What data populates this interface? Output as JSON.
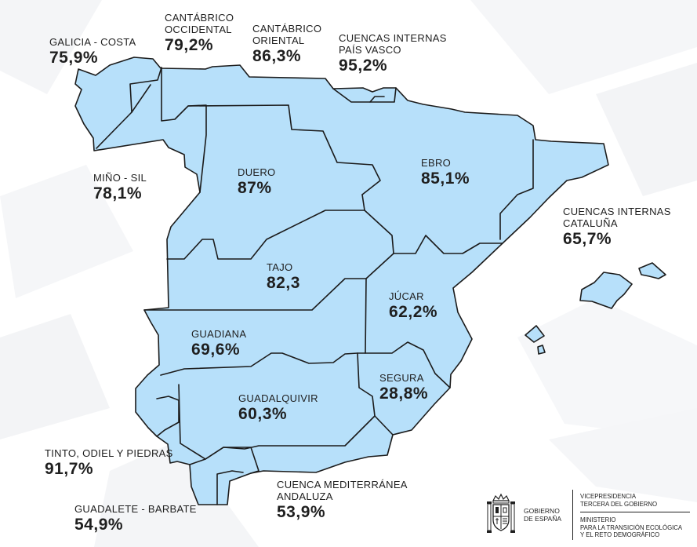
{
  "colors": {
    "basin_fill": "#b7e0fa",
    "border": "#1b1b1b",
    "text": "#1f1f1f",
    "background": "#ffffff"
  },
  "basins": {
    "galicia_costa": {
      "name": "GALICIA - COSTA",
      "value": "75,9%"
    },
    "cantabrico_occidental": {
      "name_line1": "CANTÁBRICO",
      "name_line2": "OCCIDENTAL",
      "value": "79,2%"
    },
    "cantabrico_oriental": {
      "name_line1": "CANTÁBRICO",
      "name_line2": "ORIENTAL",
      "value": "86,3%"
    },
    "cuencas_internas_pais_vasco": {
      "name_line1": "CUENCAS INTERNAS",
      "name_line2": "PAÍS VASCO",
      "value": "95,2%"
    },
    "mino_sil": {
      "name": "MIÑO - SIL",
      "value": "78,1%"
    },
    "duero": {
      "name": "DUERO",
      "value": "87%"
    },
    "ebro": {
      "name": "EBRO",
      "value": "85,1%"
    },
    "cuencas_internas_cataluna": {
      "name_line1": "CUENCAS INTERNAS",
      "name_line2": "CATALUÑA",
      "value": "65,7%"
    },
    "tajo": {
      "name": "TAJO",
      "value": "82,3"
    },
    "jucar": {
      "name": "JÚCAR",
      "value": "62,2%"
    },
    "guadiana": {
      "name": "GUADIANA",
      "value": "69,6%"
    },
    "segura": {
      "name": "SEGURA",
      "value": "28,8%"
    },
    "guadalquivir": {
      "name": "GUADALQUIVIR",
      "value": "60,3%"
    },
    "tinto_odiel_piedras": {
      "name": "TINTO, ODIEL Y PIEDRAS",
      "value": "91,7%"
    },
    "cuenca_mediterranea_andaluza": {
      "name_line1": "CUENCA MEDITERRÁNEA",
      "name_line2": "ANDALUZA",
      "value": "53,9%"
    },
    "guadalete_barbate": {
      "name": "GUADALETE - BARBATE",
      "value": "54,9%"
    }
  },
  "footer": {
    "emblem_icon": "coat-of-arms-icon",
    "gobierno_line1": "GOBIERNO",
    "gobierno_line2": "DE ESPAÑA",
    "vice_line1": "VICEPRESIDENCIA",
    "vice_line2": "TERCERA DEL GOBIERNO",
    "ministerio_line1": "MINISTERIO",
    "ministerio_line2": "PARA LA TRANSICIÓN ECOLÓGICA",
    "ministerio_line3": "Y EL RETO DEMOGRÁFICO"
  }
}
